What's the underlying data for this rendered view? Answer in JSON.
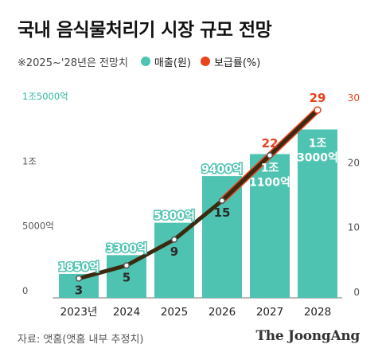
{
  "title": "국내 음식물처리기 시장 규모 전망",
  "note": "※2025~'28년은 전망치",
  "colors": {
    "bar": "#4fc3b1",
    "line": "#e8421f",
    "trend": "#3b2a12",
    "axis_left": "#2db79f",
    "axis_right": "#e8421f"
  },
  "source": "자료: 앳홈(앳홈 내부 추정치)",
  "brand": "The JoongAng",
  "chart_data": {
    "type": "bar",
    "categories": [
      "2023년",
      "2024",
      "2025",
      "2026",
      "2027",
      "2028"
    ],
    "series": [
      {
        "name": "매출(원)",
        "type": "bar",
        "axis": "left",
        "values": [
          1850,
          3300,
          5800,
          9400,
          11100,
          13000
        ],
        "labels": [
          "1850억",
          "3300억",
          "5800억",
          "9400억",
          "1조\n1100억",
          "1조\n3000억"
        ]
      },
      {
        "name": "보급률(%)",
        "type": "line",
        "axis": "right",
        "values": [
          3,
          5,
          9,
          15,
          22,
          29
        ],
        "labels": [
          "3",
          "5",
          "9",
          "15",
          "22",
          "29"
        ]
      }
    ],
    "y_left": {
      "min": 0,
      "max": 15000,
      "ticks": [
        0,
        5000,
        10000,
        15000
      ],
      "tick_labels": [
        "0",
        "5000억",
        "1조",
        "1조5000억"
      ]
    },
    "y_right": {
      "min": 0,
      "max": 30,
      "ticks": [
        0,
        10,
        20,
        30
      ],
      "tick_labels": [
        "0",
        "10",
        "20",
        "30"
      ]
    },
    "grid": false,
    "legend_position": "top-left"
  }
}
